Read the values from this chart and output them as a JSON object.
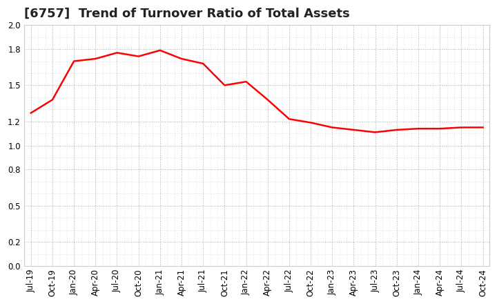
{
  "title": "[6757]  Trend of Turnover Ratio of Total Assets",
  "line_color": "#FF0000",
  "background_color": "#FFFFFF",
  "grid_color": "#AAAAAA",
  "ylim": [
    0.0,
    2.0
  ],
  "yticks": [
    0.0,
    0.2,
    0.5,
    0.8,
    1.0,
    1.2,
    1.5,
    1.8,
    2.0
  ],
  "x_labels": [
    "Jul-19",
    "Oct-19",
    "Jan-20",
    "Apr-20",
    "Jul-20",
    "Oct-20",
    "Jan-21",
    "Apr-21",
    "Jul-21",
    "Oct-21",
    "Jan-22",
    "Apr-22",
    "Jul-22",
    "Oct-22",
    "Jan-23",
    "Apr-23",
    "Jul-23",
    "Oct-23",
    "Jan-24",
    "Apr-24",
    "Jul-24",
    "Oct-24"
  ],
  "values": [
    1.27,
    1.38,
    1.7,
    1.72,
    1.77,
    1.74,
    1.79,
    1.72,
    1.68,
    1.5,
    1.53,
    1.38,
    1.22,
    1.19,
    1.15,
    1.13,
    1.11,
    1.13,
    1.14,
    1.14,
    1.15,
    1.15
  ],
  "title_fontsize": 13,
  "tick_fontsize": 8.5
}
